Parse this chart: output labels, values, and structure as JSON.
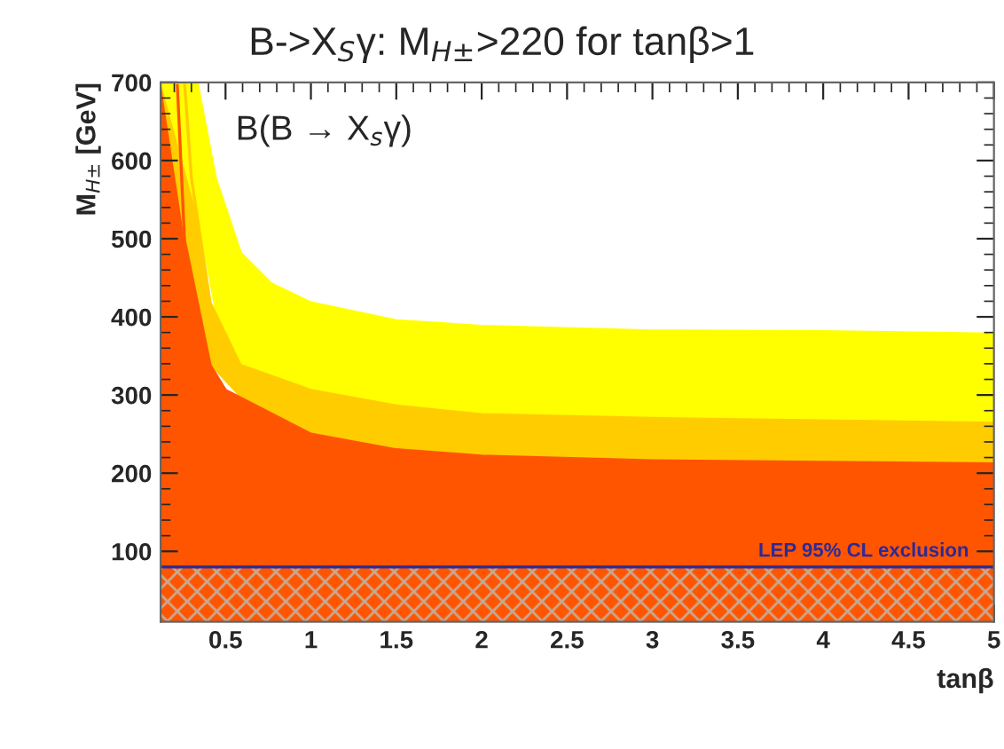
{
  "chart_data": {
    "type": "area",
    "title": "B->X$_{S}$γ: M$_{H±}$>220 for tanβ>1",
    "xlabel": "tanβ",
    "ylabel": "M$_{H±}$ [GeV]",
    "annotations": [
      "B(B → X$_{s}$γ)"
    ],
    "series": [
      {
        "color": "#ff5500",
        "x": [
          0.12,
          0.217,
          0.26,
          0.41,
          0.5,
          1,
          1.5,
          2,
          3,
          4,
          5
        ],
        "values": [
          700,
          700,
          498,
          338,
          306,
          250,
          230,
          222,
          216,
          214,
          212
        ]
      },
      {
        "color": "#ffcc00",
        "x": [
          0.12,
          0.26,
          0.3,
          0.41,
          0.587,
          1,
          1.5,
          2,
          3,
          4,
          5
        ],
        "values": [
          700,
          700,
          578,
          418,
          338,
          306,
          286,
          275,
          270,
          267,
          264
        ]
      },
      {
        "color": "#ffff00",
        "x": [
          0.12,
          0.333,
          0.44,
          0.587,
          0.77,
          1,
          1.5,
          2,
          3,
          4,
          5
        ],
        "values": [
          700,
          700,
          578,
          482,
          442,
          418,
          395,
          388,
          382,
          381,
          378
        ]
      }
    ],
    "bands": [
      {
        "axis": "y",
        "from": 10,
        "to": 80,
        "label": "LEP 95% CL exclusion",
        "color": "#ff5500"
      }
    ],
    "ref_lines": [
      {
        "axis": "y",
        "value": 80,
        "color": "#2a2a9a"
      }
    ],
    "xlim": [
      0.12,
      5
    ],
    "ylim": [
      10,
      700
    ],
    "xticks": [
      0.5,
      1,
      1.5,
      2,
      2.5,
      3,
      3.5,
      4,
      4.5,
      5
    ],
    "yticks": [
      100,
      200,
      300,
      400,
      500,
      600,
      700
    ],
    "grid": false,
    "legend": false
  }
}
